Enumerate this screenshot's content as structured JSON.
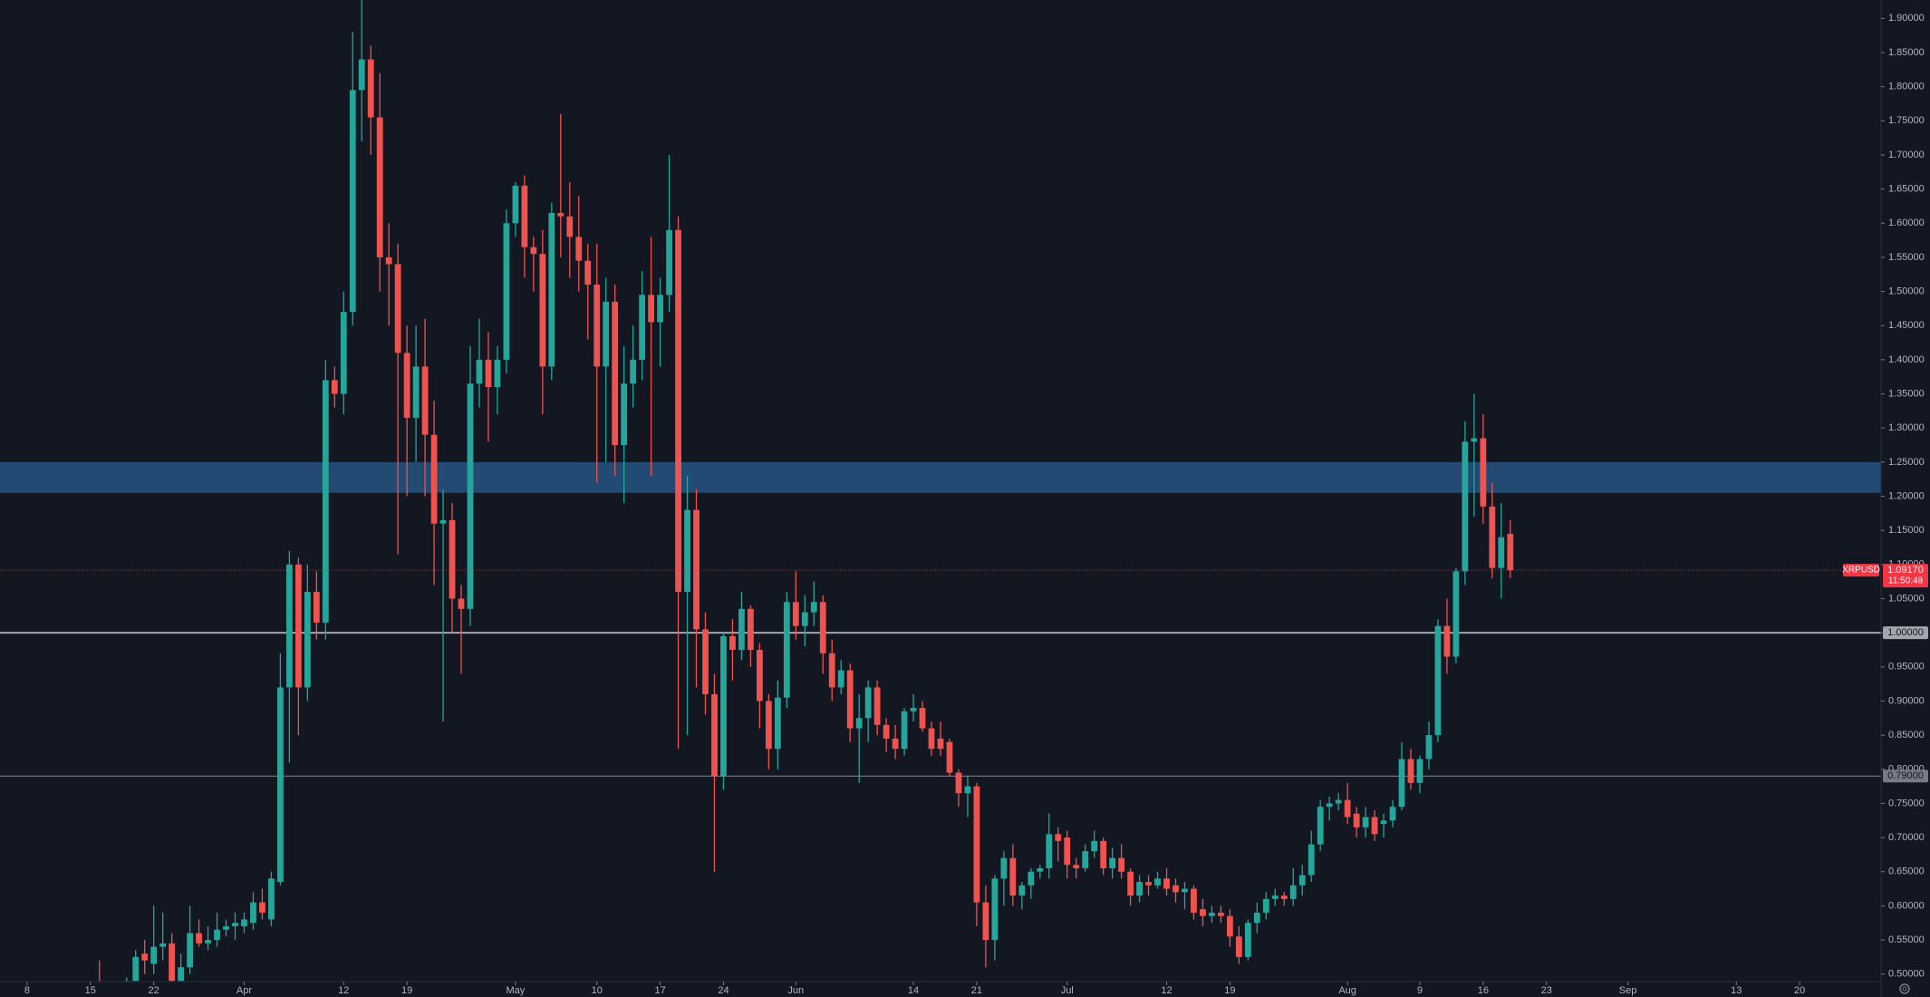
{
  "chart_data": {
    "type": "candlestick",
    "symbol": "XRPUSD",
    "x": [
      "Mar 16",
      "Mar 17",
      "Mar 18",
      "Mar 19",
      "Mar 20",
      "Mar 21",
      "Mar 22",
      "Mar 23",
      "Mar 24",
      "Mar 25",
      "Mar 26",
      "Mar 27",
      "Mar 28",
      "Mar 29",
      "Mar 30",
      "Mar 31",
      "Apr 1",
      "Apr 2",
      "Apr 3",
      "Apr 4",
      "Apr 5",
      "Apr 6",
      "Apr 7",
      "Apr 8",
      "Apr 9",
      "Apr 10",
      "Apr 11",
      "Apr 12",
      "Apr 13",
      "Apr 14",
      "Apr 15",
      "Apr 16",
      "Apr 17",
      "Apr 18",
      "Apr 19",
      "Apr 20",
      "Apr 21",
      "Apr 22",
      "Apr 23",
      "Apr 24",
      "Apr 25",
      "Apr 26",
      "Apr 27",
      "Apr 28",
      "Apr 29",
      "Apr 30",
      "May 1",
      "May 2",
      "May 3",
      "May 4",
      "May 5",
      "May 6",
      "May 7",
      "May 8",
      "May 9",
      "May 10",
      "May 11",
      "May 12",
      "May 13",
      "May 14",
      "May 15",
      "May 16",
      "May 17",
      "May 18",
      "May 19",
      "May 20",
      "May 21",
      "May 22",
      "May 23",
      "May 24",
      "May 25",
      "May 26",
      "May 27",
      "May 28",
      "May 29",
      "May 30",
      "May 31",
      "Jun 1",
      "Jun 2",
      "Jun 3",
      "Jun 4",
      "Jun 5",
      "Jun 6",
      "Jun 7",
      "Jun 8",
      "Jun 9",
      "Jun 10",
      "Jun 11",
      "Jun 12",
      "Jun 13",
      "Jun 14",
      "Jun 15",
      "Jun 16",
      "Jun 17",
      "Jun 18",
      "Jun 19",
      "Jun 20",
      "Jun 21",
      "Jun 22",
      "Jun 23",
      "Jun 24",
      "Jun 25",
      "Jun 26",
      "Jun 27",
      "Jun 28",
      "Jun 29",
      "Jun 30",
      "Jul 1",
      "Jul 2",
      "Jul 3",
      "Jul 4",
      "Jul 5",
      "Jul 6",
      "Jul 7",
      "Jul 8",
      "Jul 9",
      "Jul 10",
      "Jul 11",
      "Jul 12",
      "Jul 13",
      "Jul 14",
      "Jul 15",
      "Jul 16",
      "Jul 17",
      "Jul 18",
      "Jul 19",
      "Jul 20",
      "Jul 21",
      "Jul 22",
      "Jul 23",
      "Jul 24",
      "Jul 25",
      "Jul 26",
      "Jul 27",
      "Jul 28",
      "Jul 29",
      "Jul 30",
      "Jul 31",
      "Aug 1",
      "Aug 2",
      "Aug 3",
      "Aug 4",
      "Aug 5",
      "Aug 6",
      "Aug 7",
      "Aug 8",
      "Aug 9",
      "Aug 10",
      "Aug 11",
      "Aug 12",
      "Aug 13",
      "Aug 14",
      "Aug 15",
      "Aug 16",
      "Aug 17",
      "Aug 18",
      "Aug 19"
    ],
    "open": [
      0.47,
      0.465,
      0.47,
      0.46,
      0.49,
      0.53,
      0.515,
      0.54,
      0.545,
      0.49,
      0.51,
      0.56,
      0.545,
      0.55,
      0.565,
      0.57,
      0.57,
      0.575,
      0.605,
      0.58,
      0.635,
      0.92,
      1.1,
      0.92,
      1.06,
      1.015,
      1.37,
      1.35,
      1.47,
      1.795,
      1.84,
      1.755,
      1.55,
      1.54,
      1.41,
      1.315,
      1.39,
      1.29,
      1.16,
      1.165,
      1.05,
      1.035,
      1.365,
      1.4,
      1.36,
      1.4,
      1.6,
      1.655,
      1.565,
      1.555,
      1.39,
      1.615,
      1.61,
      1.58,
      1.545,
      1.51,
      1.39,
      1.485,
      1.275,
      1.365,
      1.4,
      1.495,
      1.455,
      1.495,
      1.59,
      1.06,
      1.18,
      1.005,
      0.91,
      0.79,
      0.995,
      0.975,
      1.035,
      0.975,
      0.9,
      0.83,
      0.905,
      1.045,
      1.01,
      1.03,
      1.045,
      0.97,
      0.92,
      0.945,
      0.86,
      0.875,
      0.92,
      0.865,
      0.845,
      0.83,
      0.885,
      0.89,
      0.86,
      0.845,
      0.84,
      0.795,
      0.765,
      0.775,
      0.605,
      0.55,
      0.64,
      0.67,
      0.615,
      0.63,
      0.65,
      0.655,
      0.705,
      0.7,
      0.66,
      0.655,
      0.68,
      0.695,
      0.655,
      0.67,
      0.65,
      0.615,
      0.635,
      0.63,
      0.64,
      0.63,
      0.62,
      0.625,
      0.595,
      0.585,
      0.59,
      0.585,
      0.555,
      0.525,
      0.575,
      0.59,
      0.61,
      0.615,
      0.61,
      0.63,
      0.645,
      0.69,
      0.745,
      0.75,
      0.755,
      0.735,
      0.715,
      0.73,
      0.72,
      0.725,
      0.745,
      0.815,
      0.78,
      0.815,
      0.85,
      1.01,
      0.965,
      1.09,
      1.28,
      1.285,
      1.185,
      1.095,
      1.145
    ],
    "high": [
      0.52,
      0.48,
      0.48,
      0.495,
      0.535,
      0.55,
      0.6,
      0.59,
      0.56,
      0.53,
      0.6,
      0.58,
      0.57,
      0.59,
      0.58,
      0.59,
      0.59,
      0.62,
      0.625,
      0.65,
      0.97,
      1.12,
      1.11,
      1.1,
      1.09,
      1.4,
      1.39,
      1.5,
      1.88,
      1.96,
      1.86,
      1.82,
      1.6,
      1.57,
      1.45,
      1.45,
      1.46,
      1.34,
      1.21,
      1.19,
      1.07,
      1.42,
      1.46,
      1.44,
      1.42,
      1.62,
      1.66,
      1.67,
      1.58,
      1.59,
      1.63,
      1.76,
      1.66,
      1.64,
      1.57,
      1.57,
      1.52,
      1.51,
      1.42,
      1.45,
      1.53,
      1.58,
      1.52,
      1.7,
      1.61,
      1.23,
      1.21,
      1.03,
      0.94,
      1.0,
      1.02,
      1.06,
      1.04,
      0.985,
      0.91,
      0.93,
      1.06,
      1.09,
      1.055,
      1.075,
      1.055,
      0.99,
      0.96,
      0.955,
      0.91,
      0.93,
      0.93,
      0.875,
      0.865,
      0.89,
      0.91,
      0.9,
      0.87,
      0.87,
      0.845,
      0.8,
      0.79,
      0.78,
      0.63,
      0.645,
      0.68,
      0.69,
      0.635,
      0.655,
      0.66,
      0.735,
      0.715,
      0.71,
      0.67,
      0.69,
      0.71,
      0.7,
      0.685,
      0.69,
      0.655,
      0.645,
      0.645,
      0.65,
      0.655,
      0.64,
      0.635,
      0.63,
      0.61,
      0.6,
      0.6,
      0.595,
      0.57,
      0.58,
      0.605,
      0.62,
      0.625,
      0.62,
      0.655,
      0.66,
      0.71,
      0.755,
      0.76,
      0.765,
      0.78,
      0.745,
      0.745,
      0.74,
      0.735,
      0.755,
      0.84,
      0.83,
      0.82,
      0.87,
      1.02,
      1.05,
      1.095,
      1.31,
      1.35,
      1.32,
      1.22,
      1.19,
      1.165
    ],
    "low": [
      0.45,
      0.45,
      0.45,
      0.455,
      0.48,
      0.5,
      0.5,
      0.52,
      0.48,
      0.48,
      0.5,
      0.54,
      0.535,
      0.54,
      0.555,
      0.55,
      0.56,
      0.565,
      0.58,
      0.57,
      0.63,
      0.81,
      0.85,
      0.9,
      0.99,
      0.99,
      1.33,
      1.32,
      1.45,
      1.72,
      1.7,
      1.5,
      1.45,
      1.115,
      1.2,
      1.25,
      1.2,
      1.07,
      0.87,
      1.0,
      0.94,
      1.01,
      1.33,
      1.28,
      1.32,
      1.38,
      1.58,
      1.52,
      1.5,
      1.32,
      1.37,
      1.55,
      1.52,
      1.5,
      1.43,
      1.22,
      1.25,
      1.23,
      1.19,
      1.33,
      1.37,
      1.23,
      1.39,
      1.47,
      0.83,
      0.85,
      0.92,
      0.88,
      0.65,
      0.77,
      0.93,
      0.96,
      0.95,
      0.86,
      0.8,
      0.8,
      0.89,
      0.99,
      0.98,
      1.01,
      0.94,
      0.9,
      0.91,
      0.84,
      0.78,
      0.84,
      0.85,
      0.825,
      0.815,
      0.82,
      0.87,
      0.855,
      0.82,
      0.82,
      0.79,
      0.745,
      0.73,
      0.57,
      0.51,
      0.52,
      0.6,
      0.6,
      0.595,
      0.61,
      0.64,
      0.64,
      0.665,
      0.64,
      0.64,
      0.65,
      0.67,
      0.645,
      0.64,
      0.64,
      0.6,
      0.605,
      0.615,
      0.625,
      0.615,
      0.605,
      0.595,
      0.58,
      0.57,
      0.575,
      0.575,
      0.54,
      0.515,
      0.52,
      0.56,
      0.58,
      0.6,
      0.6,
      0.6,
      0.615,
      0.635,
      0.68,
      0.725,
      0.74,
      0.72,
      0.7,
      0.7,
      0.695,
      0.7,
      0.715,
      0.74,
      0.77,
      0.765,
      0.8,
      0.84,
      0.94,
      0.955,
      1.07,
      1.17,
      1.16,
      1.08,
      1.05,
      1.08
    ],
    "close": [
      0.465,
      0.47,
      0.46,
      0.49,
      0.525,
      0.52,
      0.54,
      0.545,
      0.49,
      0.51,
      0.56,
      0.545,
      0.55,
      0.565,
      0.57,
      0.575,
      0.58,
      0.605,
      0.59,
      0.64,
      0.92,
      1.1,
      0.92,
      1.06,
      1.015,
      1.37,
      1.35,
      1.47,
      1.795,
      1.84,
      1.755,
      1.55,
      1.54,
      1.41,
      1.315,
      1.39,
      1.29,
      1.16,
      1.165,
      1.05,
      1.035,
      1.365,
      1.4,
      1.36,
      1.4,
      1.6,
      1.655,
      1.565,
      1.555,
      1.39,
      1.615,
      1.61,
      1.58,
      1.545,
      1.51,
      1.39,
      1.485,
      1.275,
      1.365,
      1.4,
      1.495,
      1.455,
      1.495,
      1.59,
      1.06,
      1.18,
      1.005,
      0.91,
      0.79,
      0.995,
      0.975,
      1.035,
      0.975,
      0.9,
      0.83,
      0.905,
      1.045,
      1.01,
      1.03,
      1.045,
      0.97,
      0.92,
      0.945,
      0.86,
      0.875,
      0.92,
      0.865,
      0.845,
      0.83,
      0.885,
      0.89,
      0.86,
      0.83,
      0.83,
      0.795,
      0.765,
      0.775,
      0.605,
      0.55,
      0.64,
      0.67,
      0.615,
      0.63,
      0.65,
      0.655,
      0.705,
      0.695,
      0.66,
      0.655,
      0.68,
      0.695,
      0.655,
      0.67,
      0.65,
      0.615,
      0.635,
      0.63,
      0.64,
      0.625,
      0.62,
      0.625,
      0.59,
      0.585,
      0.59,
      0.585,
      0.555,
      0.525,
      0.575,
      0.59,
      0.61,
      0.615,
      0.61,
      0.63,
      0.645,
      0.69,
      0.745,
      0.75,
      0.755,
      0.73,
      0.715,
      0.73,
      0.705,
      0.725,
      0.745,
      0.815,
      0.78,
      0.815,
      0.85,
      1.01,
      0.965,
      1.09,
      1.28,
      1.285,
      1.185,
      1.095,
      1.14,
      1.0917
    ],
    "up_color": "#26a69a",
    "down_color": "#ef5350",
    "xlim": [
      "Mar 5",
      "Sep 29"
    ],
    "xticks": [
      {
        "value": "Mar 8",
        "label": "8"
      },
      {
        "value": "Mar 15",
        "label": "15"
      },
      {
        "value": "Mar 22",
        "label": "22"
      },
      {
        "value": "Apr 1",
        "label": "Apr"
      },
      {
        "value": "Apr 12",
        "label": "12"
      },
      {
        "value": "Apr 19",
        "label": "19"
      },
      {
        "value": "May 1",
        "label": "May"
      },
      {
        "value": "May 10",
        "label": "10"
      },
      {
        "value": "May 17",
        "label": "17"
      },
      {
        "value": "May 24",
        "label": "24"
      },
      {
        "value": "Jun 1",
        "label": "Jun"
      },
      {
        "value": "Jun 14",
        "label": "14"
      },
      {
        "value": "Jun 21",
        "label": "21"
      },
      {
        "value": "Jul 1",
        "label": "Jul"
      },
      {
        "value": "Jul 12",
        "label": "12"
      },
      {
        "value": "Jul 19",
        "label": "19"
      },
      {
        "value": "Aug 1",
        "label": "Aug"
      },
      {
        "value": "Aug 9",
        "label": "9"
      },
      {
        "value": "Aug 16",
        "label": "16"
      },
      {
        "value": "Aug 23",
        "label": "23"
      },
      {
        "value": "Sep 1",
        "label": "Sep"
      },
      {
        "value": "Sep 13",
        "label": "13"
      },
      {
        "value": "Sep 20",
        "label": "20"
      }
    ],
    "ylim": [
      0.489,
      1.927
    ],
    "yticks": [
      {
        "value": 0.5,
        "label": "0.50000"
      },
      {
        "value": 0.55,
        "label": "0.55000"
      },
      {
        "value": 0.6,
        "label": "0.60000"
      },
      {
        "value": 0.65,
        "label": "0.65000"
      },
      {
        "value": 0.7,
        "label": "0.70000"
      },
      {
        "value": 0.75,
        "label": "0.75000"
      },
      {
        "value": 0.8,
        "label": "0.80000"
      },
      {
        "value": 0.85,
        "label": "0.85000"
      },
      {
        "value": 0.9,
        "label": "0.90000"
      },
      {
        "value": 0.95,
        "label": "0.95000"
      },
      {
        "value": 1.0,
        "label": "1.00000"
      },
      {
        "value": 1.05,
        "label": "1.05000"
      },
      {
        "value": 1.1,
        "label": "1.10000"
      },
      {
        "value": 1.15,
        "label": "1.15000"
      },
      {
        "value": 1.2,
        "label": "1.20000"
      },
      {
        "value": 1.25,
        "label": "1.25000"
      },
      {
        "value": 1.3,
        "label": "1.30000"
      },
      {
        "value": 1.35,
        "label": "1.35000"
      },
      {
        "value": 1.4,
        "label": "1.40000"
      },
      {
        "value": 1.45,
        "label": "1.45000"
      },
      {
        "value": 1.5,
        "label": "1.50000"
      },
      {
        "value": 1.55,
        "label": "1.55000"
      },
      {
        "value": 1.6,
        "label": "1.60000"
      },
      {
        "value": 1.65,
        "label": "1.65000"
      },
      {
        "value": 1.7,
        "label": "1.70000"
      },
      {
        "value": 1.75,
        "label": "1.75000"
      },
      {
        "value": 1.8,
        "label": "1.80000"
      },
      {
        "value": 1.85,
        "label": "1.85000"
      },
      {
        "value": 1.9,
        "label": "1.90000"
      }
    ],
    "grid": false,
    "zones": [
      {
        "from": 1.205,
        "to": 1.25,
        "color": "#234a73"
      }
    ],
    "hlines": [
      {
        "value": 1.0,
        "label": "1.00000",
        "color": "#a3a6af"
      },
      {
        "value": 0.79,
        "label": "0.79000",
        "color": "#787b86"
      }
    ],
    "last_price": {
      "value": 1.0917,
      "label": "1.09170",
      "countdown": "11:50:48",
      "color": "#f23645"
    }
  }
}
